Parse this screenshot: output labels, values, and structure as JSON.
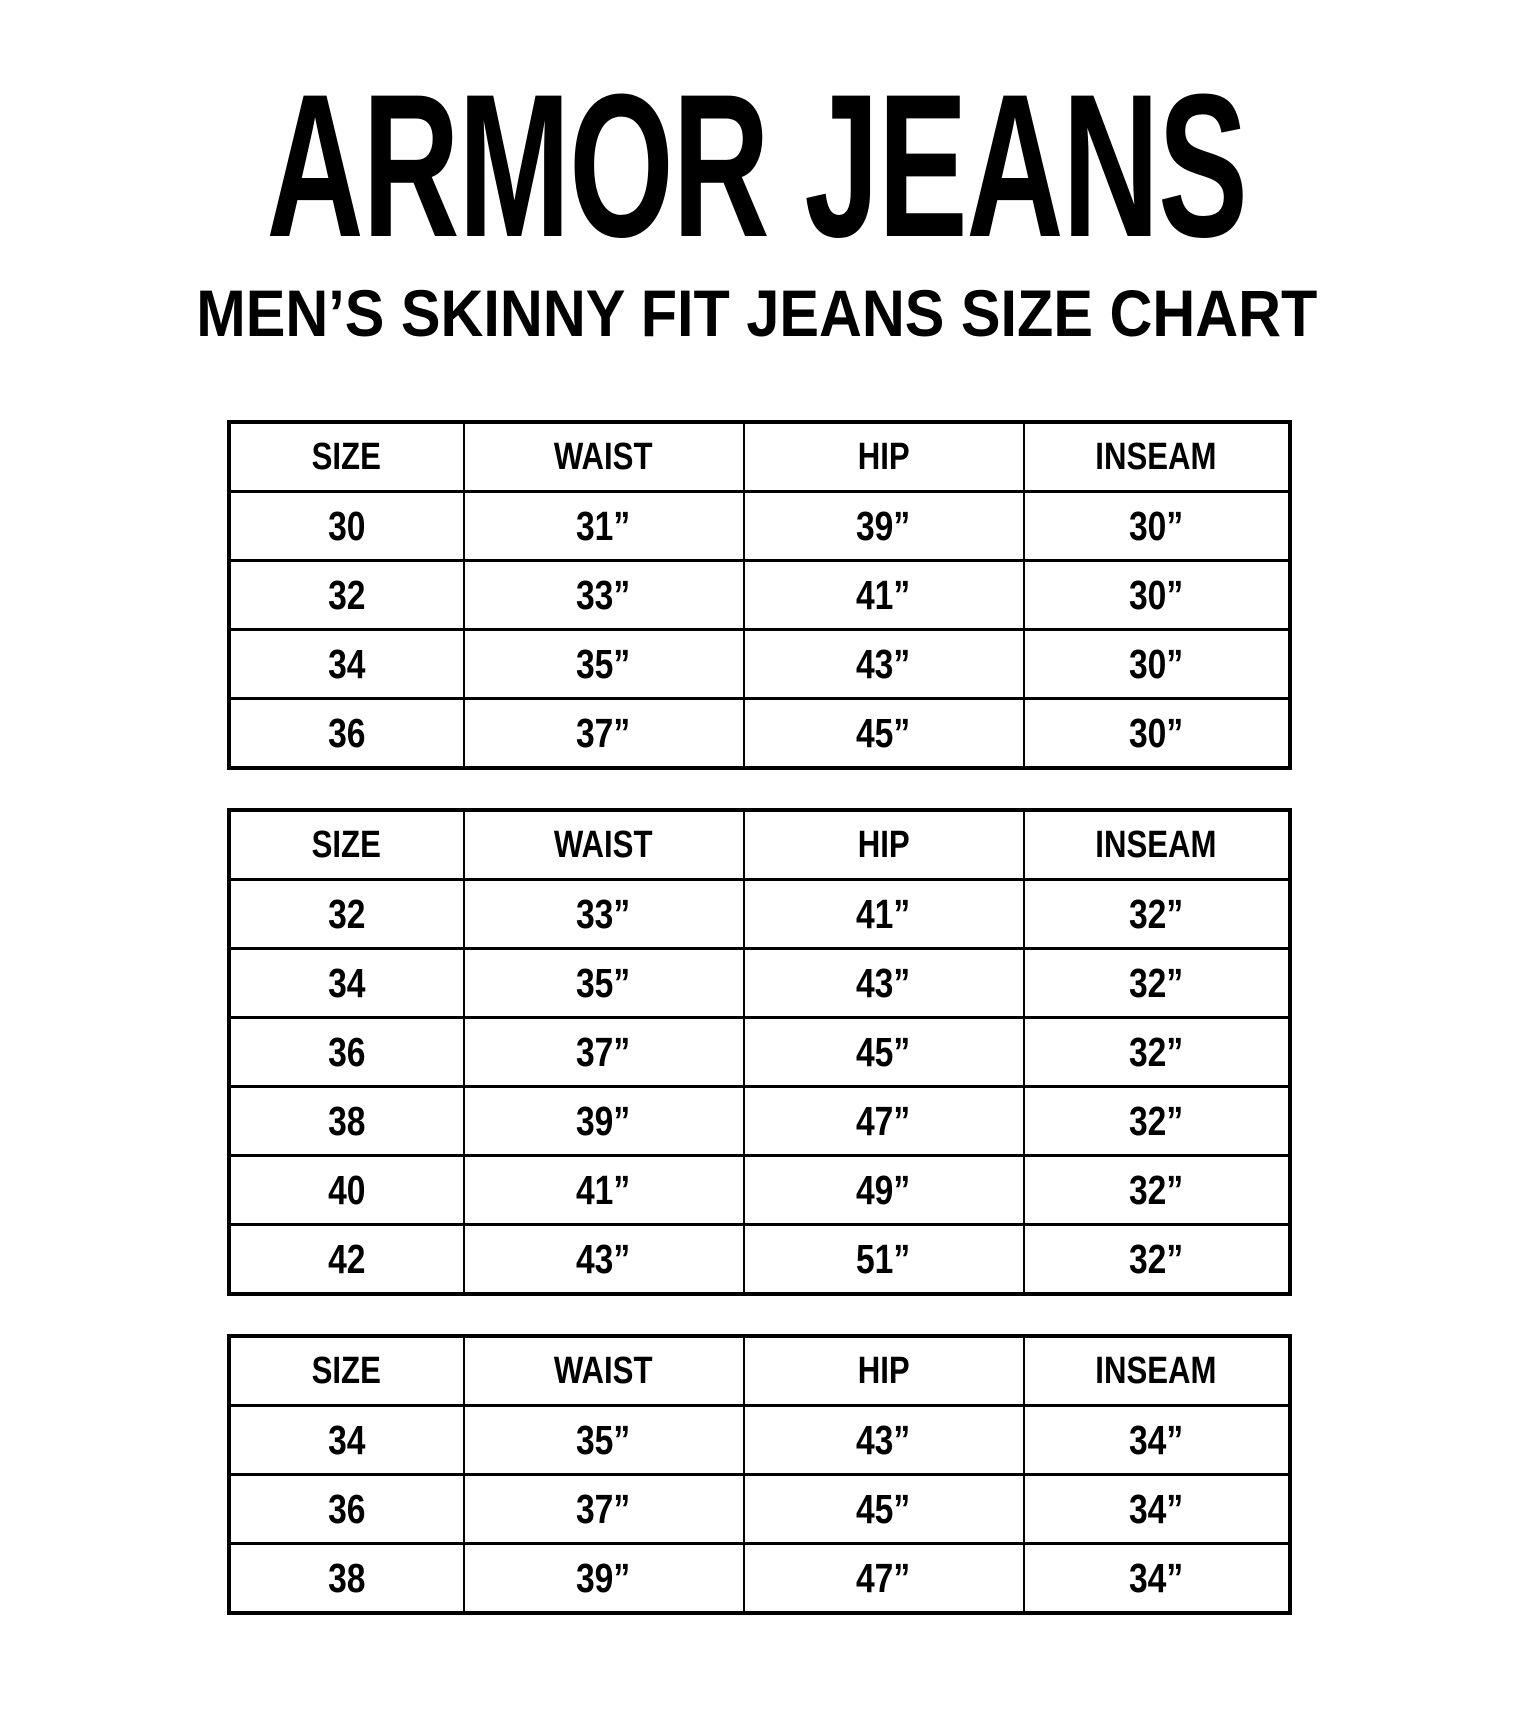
{
  "header": {
    "title": "ARMOR JEANS",
    "subtitle": "MEN’S SKINNY FIT JEANS SIZE CHART"
  },
  "size_tables": [
    {
      "name": "inseam-30",
      "columns": [
        "SIZE",
        "WAIST",
        "HIP",
        "INSEAM"
      ],
      "rows": [
        [
          "30",
          "31”",
          "39”",
          "30”"
        ],
        [
          "32",
          "33”",
          "41”",
          "30”"
        ],
        [
          "34",
          "35”",
          "43”",
          "30”"
        ],
        [
          "36",
          "37”",
          "45”",
          "30”"
        ]
      ]
    },
    {
      "name": "inseam-32",
      "columns": [
        "SIZE",
        "WAIST",
        "HIP",
        "INSEAM"
      ],
      "rows": [
        [
          "32",
          "33”",
          "41”",
          "32”"
        ],
        [
          "34",
          "35”",
          "43”",
          "32”"
        ],
        [
          "36",
          "37”",
          "45”",
          "32”"
        ],
        [
          "38",
          "39”",
          "47”",
          "32”"
        ],
        [
          "40",
          "41”",
          "49”",
          "32”"
        ],
        [
          "42",
          "43”",
          "51”",
          "32”"
        ]
      ]
    },
    {
      "name": "inseam-34",
      "columns": [
        "SIZE",
        "WAIST",
        "HIP",
        "INSEAM"
      ],
      "rows": [
        [
          "34",
          "35”",
          "43”",
          "34”"
        ],
        [
          "36",
          "37”",
          "45”",
          "34”"
        ],
        [
          "38",
          "39”",
          "47”",
          "34”"
        ]
      ]
    }
  ]
}
